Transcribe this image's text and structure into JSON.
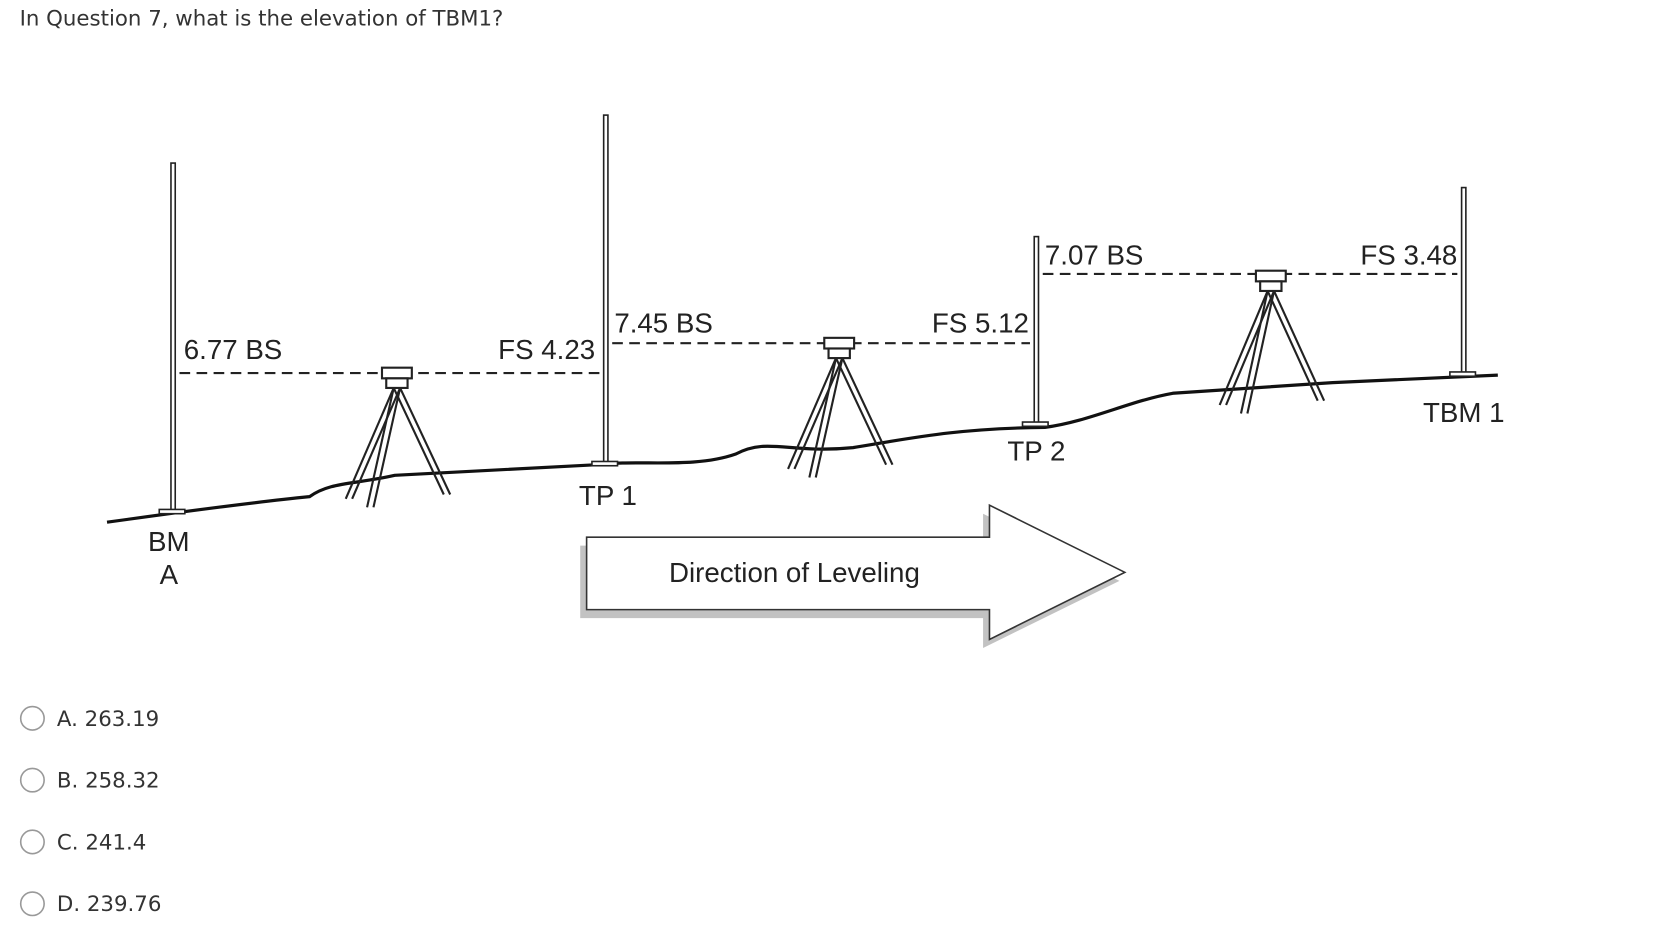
{
  "question": "In Question 7, what is the elevation of TBM1?",
  "diagram": {
    "readings": [
      "6.77 BS",
      "FS 4.23",
      "7.45 BS",
      "FS 5.12",
      "7.07 BS",
      "FS 3.48"
    ],
    "points": {
      "bm": "BM",
      "bm_sub": "A",
      "tp1": "TP 1",
      "tp2": "TP 2",
      "tbm": "TBM 1"
    },
    "arrow": "Direction of Leveling"
  },
  "options": [
    "A. 263.19",
    "B. 258.32",
    "C. 241.4",
    "D. 239.76"
  ]
}
